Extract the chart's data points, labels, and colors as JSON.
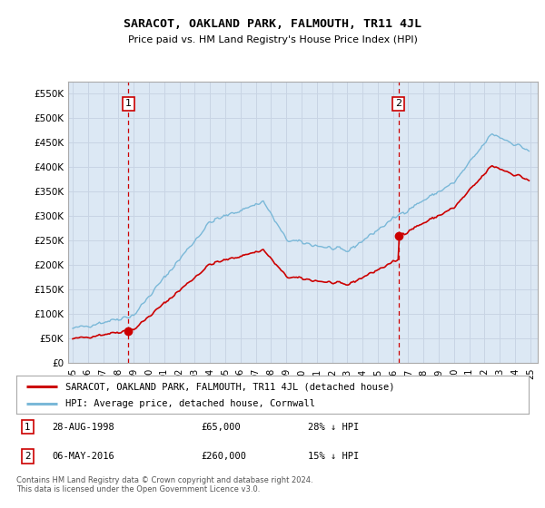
{
  "title": "SARACOT, OAKLAND PARK, FALMOUTH, TR11 4JL",
  "subtitle": "Price paid vs. HM Land Registry's House Price Index (HPI)",
  "legend_line1": "SARACOT, OAKLAND PARK, FALMOUTH, TR11 4JL (detached house)",
  "legend_line2": "HPI: Average price, detached house, Cornwall",
  "footnote1": "Contains HM Land Registry data © Crown copyright and database right 2024.",
  "footnote2": "This data is licensed under the Open Government Licence v3.0.",
  "sale1_date": "28-AUG-1998",
  "sale1_price": "£65,000",
  "sale1_hpi": "28% ↓ HPI",
  "sale2_date": "06-MAY-2016",
  "sale2_price": "£260,000",
  "sale2_hpi": "15% ↓ HPI",
  "sale1_x": 1998.65,
  "sale1_y": 65000,
  "sale2_x": 2016.35,
  "sale2_y": 260000,
  "hpi_color": "#7ab8d8",
  "sale_color": "#cc0000",
  "grid_color": "#c8d4e4",
  "bg_color": "#dce8f4",
  "anno_color": "#cc0000",
  "ylim": [
    0,
    575000
  ],
  "xlim": [
    1994.7,
    2025.5
  ],
  "yticks": [
    0,
    50000,
    100000,
    150000,
    200000,
    250000,
    300000,
    350000,
    400000,
    450000,
    500000,
    550000
  ],
  "ytick_labels": [
    "£0",
    "£50K",
    "£100K",
    "£150K",
    "£200K",
    "£250K",
    "£300K",
    "£350K",
    "£400K",
    "£450K",
    "£500K",
    "£550K"
  ],
  "xticks": [
    1995,
    1996,
    1997,
    1998,
    1999,
    2000,
    2001,
    2002,
    2003,
    2004,
    2005,
    2006,
    2007,
    2008,
    2009,
    2010,
    2011,
    2012,
    2013,
    2014,
    2015,
    2016,
    2017,
    2018,
    2019,
    2020,
    2021,
    2022,
    2023,
    2024,
    2025
  ],
  "xtick_labels": [
    "95",
    "96",
    "97",
    "98",
    "99",
    "00",
    "01",
    "02",
    "03",
    "04",
    "05",
    "06",
    "07",
    "08",
    "09",
    "10",
    "11",
    "12",
    "13",
    "14",
    "15",
    "16",
    "17",
    "18",
    "19",
    "20",
    "21",
    "22",
    "23",
    "24",
    "25"
  ]
}
